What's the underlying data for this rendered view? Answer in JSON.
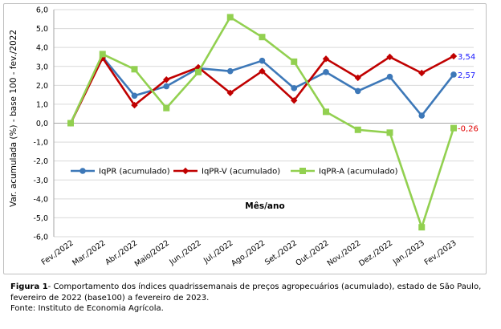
{
  "chart_data": {
    "type": "line",
    "title": "",
    "xlabel": "Mês/ano",
    "ylabel": "Var. acumulada (%) - base 100 - fev./2022",
    "ylim": [
      -6,
      6
    ],
    "yticks": [
      "6,0",
      "5,0",
      "4,0",
      "3,0",
      "2,0",
      "1,0",
      "0,0",
      "-1,0",
      "-2,0",
      "-3,0",
      "-4,0",
      "-5,0",
      "-6,0"
    ],
    "ytick_values": [
      6,
      5,
      4,
      3,
      2,
      1,
      0,
      -1,
      -2,
      -3,
      -4,
      -5,
      -6
    ],
    "grid": true,
    "legend_position": "center",
    "categories": [
      "Fev./2022",
      "Mar./2022",
      "Abr./2022",
      "Maio/2022",
      "Jun./2022",
      "Jul./2022",
      "Ago./2022",
      "Set./2022",
      "Out./2022",
      "Nov./2022",
      "Dez./2022",
      "Jan./2023",
      "Fev./2023"
    ],
    "series": [
      {
        "name": "IqPR (acumulado)",
        "color": "#3d78b8",
        "marker": "circle",
        "values": [
          0.0,
          3.5,
          1.45,
          1.95,
          2.9,
          2.75,
          3.3,
          1.85,
          2.7,
          1.7,
          2.45,
          0.4,
          2.57
        ],
        "end_label": "2,57",
        "end_label_color": "#1a1aff"
      },
      {
        "name": "IqPR-V  (acumulado)",
        "color": "#c00000",
        "marker": "diamond",
        "values": [
          0.0,
          3.45,
          0.95,
          2.3,
          2.95,
          1.6,
          2.75,
          1.2,
          3.4,
          2.4,
          3.5,
          2.65,
          3.54
        ],
        "end_label": "3,54",
        "end_label_color": "#1a1aff"
      },
      {
        "name": "IqPR-A  (acumulado)",
        "color": "#92d050",
        "marker": "square",
        "values": [
          0.0,
          3.65,
          2.85,
          0.8,
          2.7,
          5.6,
          4.55,
          3.25,
          0.6,
          -0.35,
          -0.5,
          -5.5,
          -0.26
        ],
        "end_label": "-0,26",
        "end_label_color": "#e00000"
      }
    ]
  },
  "caption": {
    "label": "Figura 1",
    "text": "- Comportamento dos índices quadrissemanais de preços agropecuários (acumulado), estado de São Paulo, fevereiro de 2022 (base100) a fevereiro de 2023.",
    "source": "Fonte: Instituto de Economia Agrícola."
  }
}
